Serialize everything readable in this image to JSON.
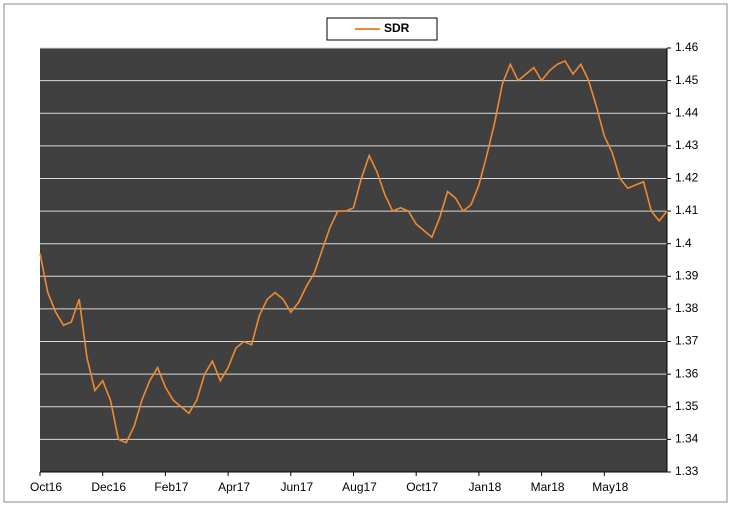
{
  "chart_data": {
    "type": "line",
    "categories": [
      "Oct16",
      null,
      null,
      null,
      null,
      null,
      null,
      null,
      "Dec16",
      null,
      null,
      null,
      null,
      null,
      null,
      null,
      "Feb17",
      null,
      null,
      null,
      null,
      null,
      null,
      null,
      "Apr17",
      null,
      null,
      null,
      null,
      null,
      null,
      null,
      "Jun17",
      null,
      null,
      null,
      null,
      null,
      null,
      null,
      "Aug17",
      null,
      null,
      null,
      null,
      null,
      null,
      null,
      "Oct17",
      null,
      null,
      null,
      null,
      null,
      null,
      null,
      "Jan18",
      null,
      null,
      null,
      null,
      null,
      null,
      null,
      "Mar18",
      null,
      null,
      null,
      null,
      null,
      null,
      null,
      "May18",
      null,
      null,
      null,
      null,
      null,
      null,
      null,
      null
    ],
    "series": [
      {
        "name": "SDR",
        "color": "#f08a30",
        "values": [
          1.397,
          1.385,
          1.379,
          1.375,
          1.376,
          1.383,
          1.365,
          1.355,
          1.358,
          1.352,
          1.34,
          1.339,
          1.344,
          1.352,
          1.358,
          1.362,
          1.356,
          1.352,
          1.35,
          1.348,
          1.352,
          1.36,
          1.364,
          1.358,
          1.362,
          1.368,
          1.37,
          1.369,
          1.378,
          1.383,
          1.385,
          1.383,
          1.379,
          1.382,
          1.387,
          1.391,
          1.398,
          1.405,
          1.41,
          1.41,
          1.411,
          1.42,
          1.427,
          1.422,
          1.415,
          1.41,
          1.411,
          1.41,
          1.406,
          1.404,
          1.402,
          1.408,
          1.416,
          1.414,
          1.41,
          1.412,
          1.418,
          1.427,
          1.437,
          1.449,
          1.455,
          1.45,
          1.452,
          1.454,
          1.45,
          1.453,
          1.455,
          1.456,
          1.452,
          1.455,
          1.45,
          1.442,
          1.433,
          1.428,
          1.42,
          1.417,
          1.418,
          1.419,
          1.41,
          1.407,
          1.41
        ]
      }
    ],
    "ylim": [
      1.33,
      1.46
    ],
    "yticks": [
      1.33,
      1.34,
      1.35,
      1.36,
      1.37,
      1.38,
      1.39,
      1.4,
      1.41,
      1.42,
      1.43,
      1.44,
      1.45,
      1.46
    ],
    "grid": true,
    "legend": "top"
  }
}
